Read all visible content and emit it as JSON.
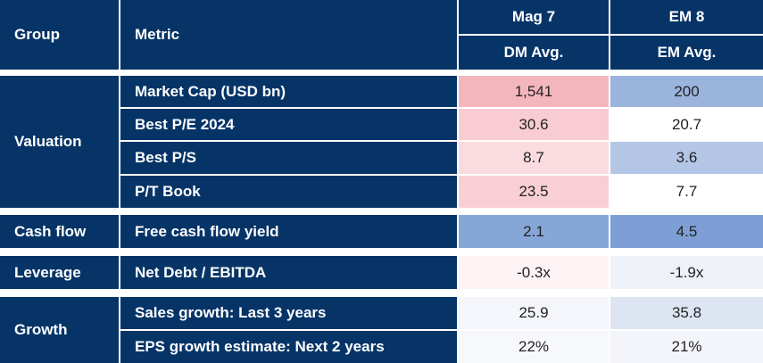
{
  "header": {
    "group_label": "Group",
    "metric_label": "Metric",
    "col1_top": "Mag 7",
    "col1_sub": "DM Avg.",
    "col2_top": "EM 8",
    "col2_sub": "EM Avg."
  },
  "groups": {
    "valuation": "Valuation",
    "cash_flow": "Cash flow",
    "leverage": "Leverage",
    "growth": "Growth"
  },
  "rows": [
    {
      "metric": "Market Cap (USD bn)",
      "v1": "1,541",
      "v2": "200",
      "c1": "#f4b6bd",
      "c2": "#9ab4de"
    },
    {
      "metric": "Best P/E 2024",
      "v1": "30.6",
      "v2": "20.7",
      "c1": "#f8ccd2",
      "c2": "#ffffff"
    },
    {
      "metric": "Best P/S",
      "v1": "8.7",
      "v2": "3.6",
      "c1": "#fadbe0",
      "c2": "#b4c6e6"
    },
    {
      "metric": "P/T Book",
      "v1": "23.5",
      "v2": "7.7",
      "c1": "#f8cfd5",
      "c2": "#ffffff"
    },
    {
      "metric": "Free cash flow yield",
      "v1": "2.1",
      "v2": "4.5",
      "c1": "#87a6d8",
      "c2": "#7d9fd6"
    },
    {
      "metric": "Net Debt / EBITDA",
      "v1": "-0.3x",
      "v2": "-1.9x",
      "c1": "#fdf3f5",
      "c2": "#eef1f8"
    },
    {
      "metric": "Sales growth: Last 3 years",
      "v1": "25.9",
      "v2": "35.8",
      "c1": "#f4f6fb",
      "c2": "#dde5f3"
    },
    {
      "metric": "EPS growth estimate: Next 2 years",
      "v1": "22%",
      "v2": "21%",
      "c1": "#f7f8fc",
      "c2": "#f3f5fa"
    }
  ]
}
